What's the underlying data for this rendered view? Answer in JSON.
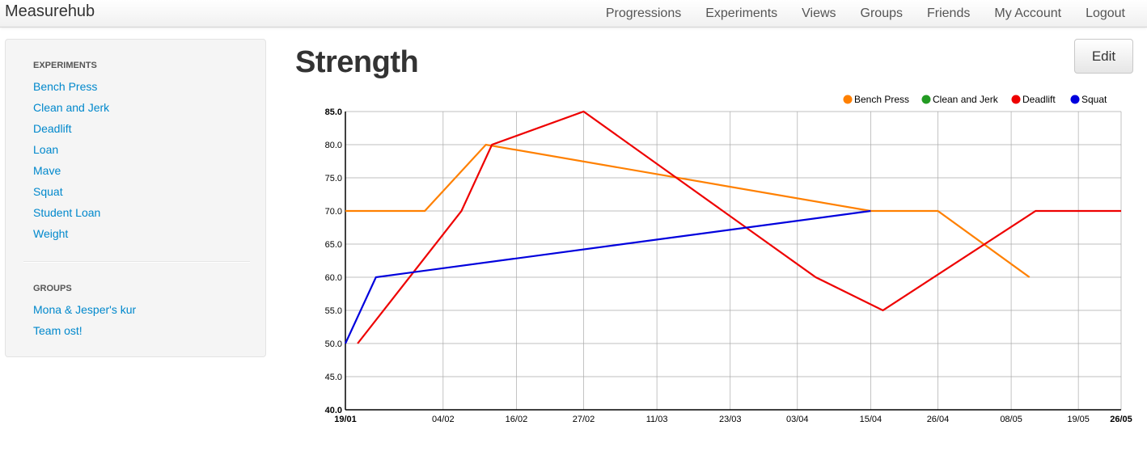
{
  "brand": "Measurehub",
  "nav": {
    "items": [
      "Progressions",
      "Experiments",
      "Views",
      "Groups",
      "Friends",
      "My Account",
      "Logout"
    ]
  },
  "sidebar": {
    "experiments_header": "EXPERIMENTS",
    "experiments": [
      "Bench Press",
      "Clean and Jerk",
      "Deadlift",
      "Loan",
      "Mave",
      "Squat",
      "Student Loan",
      "Weight"
    ],
    "groups_header": "GROUPS",
    "groups": [
      "Mona & Jesper's kur",
      "Team ost!"
    ]
  },
  "main": {
    "title": "Strength",
    "edit_label": "Edit"
  },
  "colors": {
    "link": "#0088cc",
    "bench_press": "#ff8000",
    "clean_and_jerk": "#239b23",
    "deadlift": "#ee0000",
    "squat": "#0000dd"
  },
  "chart_data": {
    "type": "line",
    "title": "",
    "xlabel": "",
    "ylabel": "",
    "ylim": [
      40.0,
      85.0
    ],
    "y_ticks": [
      "40.0",
      "45.0",
      "50.0",
      "55.0",
      "60.0",
      "65.0",
      "70.0",
      "75.0",
      "80.0",
      "85.0"
    ],
    "x_range": [
      "19/01",
      "26/05"
    ],
    "x_ticks": [
      {
        "label": "19/01",
        "day": 0,
        "bold": true
      },
      {
        "label": "04/02",
        "day": 16,
        "bold": false
      },
      {
        "label": "16/02",
        "day": 28,
        "bold": false
      },
      {
        "label": "27/02",
        "day": 39,
        "bold": false
      },
      {
        "label": "11/03",
        "day": 51,
        "bold": false
      },
      {
        "label": "23/03",
        "day": 63,
        "bold": false
      },
      {
        "label": "03/04",
        "day": 74,
        "bold": false
      },
      {
        "label": "15/04",
        "day": 86,
        "bold": false
      },
      {
        "label": "26/04",
        "day": 97,
        "bold": false
      },
      {
        "label": "08/05",
        "day": 109,
        "bold": false
      },
      {
        "label": "19/05",
        "day": 120,
        "bold": false
      },
      {
        "label": "26/05",
        "day": 127,
        "bold": true
      }
    ],
    "legend_position": "top-right",
    "grid": true,
    "series": [
      {
        "name": "Bench Press",
        "color": "#ff8000",
        "points": [
          [
            0,
            70
          ],
          [
            13,
            70
          ],
          [
            23,
            80
          ],
          [
            86,
            70
          ],
          [
            97,
            70
          ],
          [
            112,
            60
          ]
        ]
      },
      {
        "name": "Clean and Jerk",
        "color": "#239b23",
        "points": []
      },
      {
        "name": "Deadlift",
        "color": "#ee0000",
        "points": [
          [
            2,
            50
          ],
          [
            19,
            70
          ],
          [
            24,
            80
          ],
          [
            39,
            85
          ],
          [
            77,
            60
          ],
          [
            88,
            55
          ],
          [
            113,
            70
          ],
          [
            127,
            70
          ]
        ]
      },
      {
        "name": "Squat",
        "color": "#0000dd",
        "points": [
          [
            0,
            50
          ],
          [
            5,
            60
          ],
          [
            86,
            70
          ]
        ]
      }
    ]
  }
}
